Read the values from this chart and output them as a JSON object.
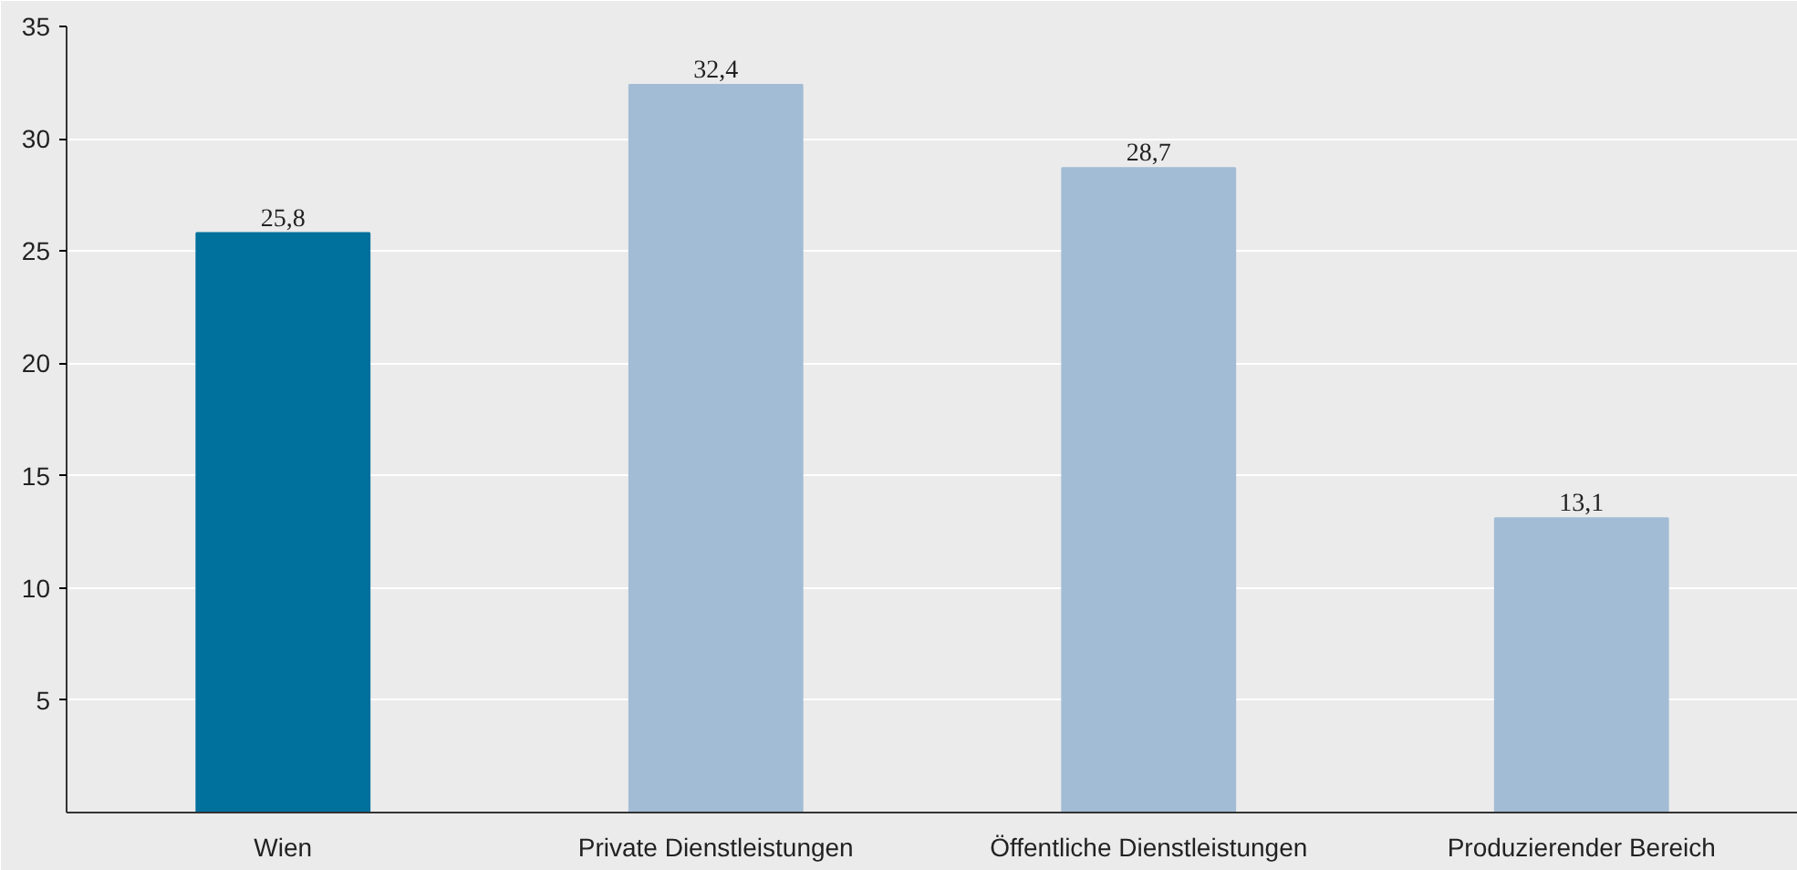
{
  "chart_data": {
    "type": "bar",
    "categories": [
      "Wien",
      "Private Dienstleistungen",
      "Öffentliche Dienstleistungen",
      "Produzierender Bereich"
    ],
    "values": [
      25.8,
      32.4,
      28.7,
      13.1
    ],
    "colors": [
      "#00709c",
      "#a3bcd5",
      "#a3bcd5",
      "#a3bcd5"
    ],
    "ylim": [
      0,
      35
    ],
    "yticks": [
      5,
      10,
      15,
      20,
      25,
      30,
      35
    ],
    "grid": "y",
    "data_labels": true,
    "value_labels": [
      "25,8",
      "32,4",
      "28,7",
      "13,1"
    ]
  }
}
